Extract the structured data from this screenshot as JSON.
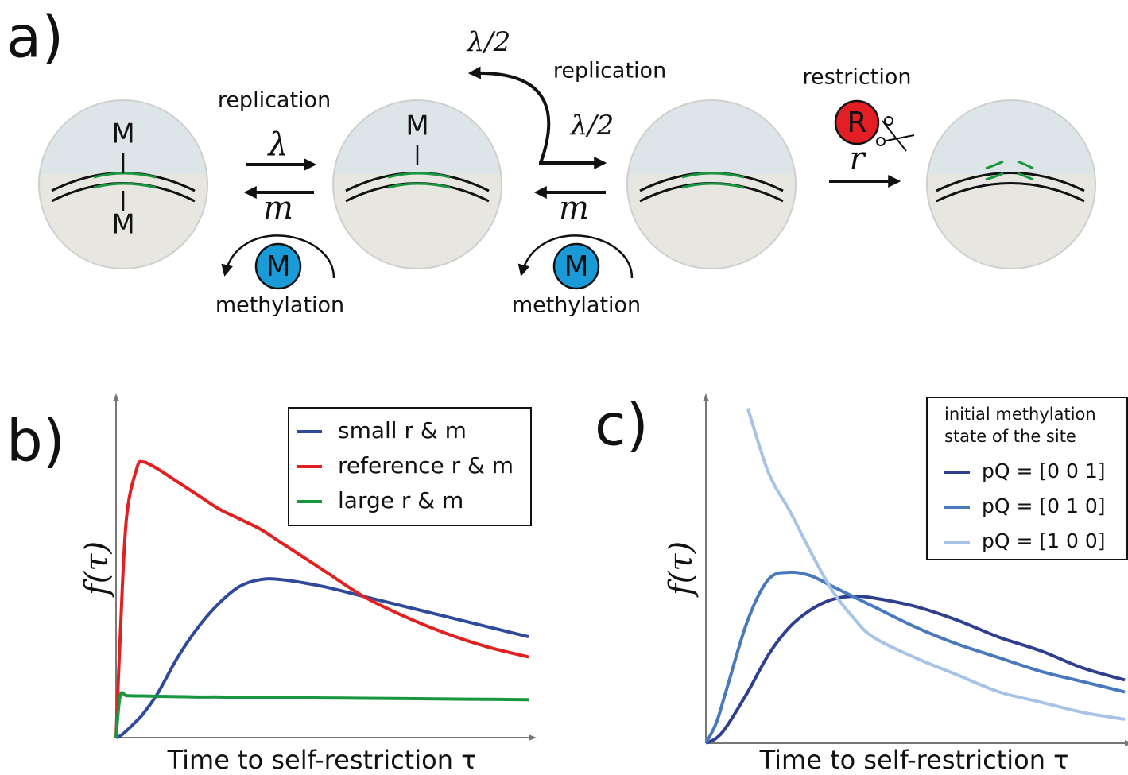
{
  "diagram": {
    "panel_label": "a)",
    "state1_marks": [
      "M",
      "M"
    ],
    "state2_mark": "M",
    "transitions": [
      {
        "label": "replication",
        "rate": "λ"
      },
      {
        "label": "methylation",
        "rate": "m",
        "enzyme": "M"
      },
      {
        "label": "replication",
        "rate": "λ/2",
        "rate2": "λ/2"
      },
      {
        "label": "methylation",
        "rate": "m",
        "enzyme": "M"
      },
      {
        "label": "restriction",
        "rate": "r",
        "enzyme": "R"
      }
    ]
  },
  "chart_data": [
    {
      "type": "line",
      "panel_label": "b)",
      "xlabel": "Time to self-restriction τ",
      "ylabel": "f(τ)",
      "xlim": [
        0,
        10
      ],
      "ylim": [
        0,
        10
      ],
      "legend": "upper right",
      "x": [
        0,
        0.1,
        0.25,
        0.5,
        0.65,
        1,
        1.5,
        2,
        2.5,
        3,
        3.5,
        4,
        5,
        6,
        7,
        8,
        9,
        10
      ],
      "series": [
        {
          "name": "small r & m",
          "color": "#2f4a9b",
          "values": [
            0,
            0.05,
            0.2,
            0.5,
            0.7,
            1.3,
            2.4,
            3.3,
            4.0,
            4.5,
            4.7,
            4.7,
            4.5,
            4.2,
            3.9,
            3.6,
            3.3,
            3.0
          ]
        },
        {
          "name": "reference r & m",
          "color": "#e32020",
          "values": [
            0,
            3.0,
            6.5,
            8.0,
            8.2,
            8.0,
            7.6,
            7.2,
            6.8,
            6.5,
            6.2,
            5.8,
            5.0,
            4.2,
            3.6,
            3.1,
            2.7,
            2.4
          ]
        },
        {
          "name": "large r & m",
          "color": "#1a9641",
          "values": [
            0,
            1.25,
            1.25,
            1.24,
            1.24,
            1.23,
            1.22,
            1.21,
            1.21,
            1.2,
            1.19,
            1.19,
            1.18,
            1.17,
            1.16,
            1.15,
            1.14,
            1.13
          ]
        }
      ]
    },
    {
      "type": "line",
      "panel_label": "c)",
      "xlabel": "Time to self-restriction τ",
      "ylabel": "f(τ)",
      "xlim": [
        0,
        10
      ],
      "ylim": [
        0,
        10
      ],
      "legend": "upper right",
      "legend_title": [
        "initial methylation",
        "state of the site"
      ],
      "x": [
        0,
        0.25,
        0.5,
        1,
        1.5,
        2,
        2.5,
        3,
        3.5,
        4,
        5,
        6,
        7,
        8,
        9,
        10
      ],
      "series": [
        {
          "name": "pQ = [0 0 1]",
          "color": "#2e3f8f",
          "values": [
            0,
            0.15,
            0.5,
            1.5,
            2.6,
            3.4,
            3.9,
            4.2,
            4.3,
            4.25,
            4.0,
            3.6,
            3.1,
            2.7,
            2.2,
            1.85
          ]
        },
        {
          "name": "pQ = [0 1 0]",
          "color": "#4a78bd",
          "values": [
            0,
            0.6,
            1.6,
            3.6,
            4.8,
            5.0,
            4.9,
            4.6,
            4.3,
            4.0,
            3.4,
            2.9,
            2.5,
            2.1,
            1.8,
            1.5
          ]
        },
        {
          "name": "pQ = [1 0 0]",
          "color": "#a7c3e6",
          "values": [
            null,
            null,
            null,
            9.8,
            7.9,
            6.8,
            5.6,
            4.5,
            3.7,
            3.1,
            2.5,
            2.0,
            1.5,
            1.2,
            0.9,
            0.7
          ]
        }
      ]
    }
  ]
}
